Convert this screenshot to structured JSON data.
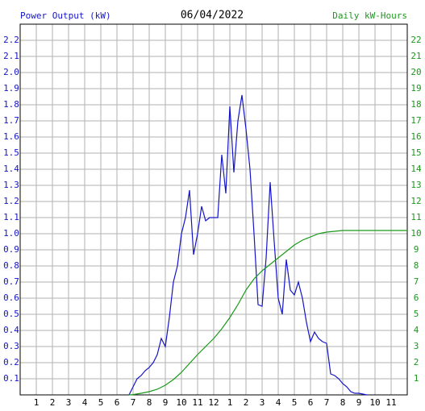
{
  "chart_data": {
    "type": "line",
    "title": "06/04/2022",
    "y_label": "Power Output (kW)",
    "y2_label": "Daily kW-Hours",
    "xlim": [
      0,
      24
    ],
    "xticks": [
      1,
      2,
      3,
      4,
      5,
      6,
      7,
      8,
      9,
      10,
      11,
      12,
      {
        "value": 13,
        "label": "1"
      },
      {
        "value": 14,
        "label": "2"
      },
      {
        "value": 15,
        "label": "3"
      },
      {
        "value": 16,
        "label": "4"
      },
      {
        "value": 17,
        "label": "5"
      },
      {
        "value": 18,
        "label": "6"
      },
      {
        "value": 19,
        "label": "7"
      },
      {
        "value": 20,
        "label": "8"
      },
      {
        "value": 21,
        "label": "9"
      },
      {
        "value": 22,
        "label": "10"
      },
      {
        "value": 23,
        "label": "11"
      }
    ],
    "ylim": [
      0,
      2.3
    ],
    "yticks": [
      0.1,
      0.2,
      0.3,
      0.4,
      0.5,
      0.6,
      0.7,
      0.8,
      0.9,
      {
        "value": 1,
        "label": "1.0"
      },
      1.1,
      1.2,
      1.3,
      1.4,
      1.5,
      1.6,
      1.7,
      1.8,
      1.9,
      {
        "value": 2,
        "label": "2.0"
      },
      2.1,
      2.2
    ],
    "y2lim": [
      0,
      23
    ],
    "y2ticks": [
      1,
      2,
      3,
      4,
      5,
      6,
      7,
      8,
      9,
      10,
      11,
      12,
      13,
      14,
      15,
      16,
      17,
      18,
      19,
      20,
      21,
      22
    ],
    "grid": true,
    "series": [
      {
        "color": "#1414c8",
        "axis": "y",
        "x": [
          6.75,
          7,
          7.25,
          7.5,
          7.75,
          8,
          8.25,
          8.5,
          8.75,
          9,
          9.25,
          9.5,
          9.75,
          10,
          10.25,
          10.5,
          10.75,
          11,
          11.25,
          11.5,
          11.75,
          12,
          12.25,
          12.5,
          12.75,
          13,
          13.25,
          13.5,
          13.75,
          14,
          14.25,
          14.5,
          14.75,
          15,
          15.25,
          15.5,
          15.75,
          16,
          16.25,
          16.5,
          16.75,
          17,
          17.25,
          17.5,
          17.75,
          18,
          18.25,
          18.5,
          18.75,
          19,
          19.25,
          19.5,
          19.75,
          20,
          20.25,
          20.5,
          20.75,
          21,
          21.5
        ],
        "values": [
          0,
          0.05,
          0.1,
          0.12,
          0.15,
          0.17,
          0.2,
          0.25,
          0.35,
          0.3,
          0.48,
          0.7,
          0.8,
          1.0,
          1.1,
          1.27,
          0.87,
          1.0,
          1.17,
          1.08,
          1.1,
          1.1,
          1.1,
          1.49,
          1.25,
          1.79,
          1.38,
          1.7,
          1.86,
          1.65,
          1.4,
          1.0,
          0.56,
          0.55,
          0.85,
          1.32,
          0.95,
          0.6,
          0.5,
          0.84,
          0.65,
          0.62,
          0.7,
          0.6,
          0.45,
          0.33,
          0.39,
          0.35,
          0.33,
          0.32,
          0.13,
          0.12,
          0.1,
          0.07,
          0.05,
          0.02,
          0.01,
          0.01,
          0
        ]
      },
      {
        "color": "#1a9a1a",
        "axis": "y2",
        "x": [
          6.75,
          7,
          7.5,
          8,
          8.5,
          9,
          9.5,
          10,
          10.5,
          11,
          11.5,
          12,
          12.5,
          13,
          13.5,
          14,
          14.5,
          15,
          15.5,
          16,
          16.5,
          17,
          17.5,
          18,
          18.5,
          19,
          19.5,
          20,
          21,
          22,
          23,
          24
        ],
        "values": [
          0,
          0.02,
          0.1,
          0.2,
          0.35,
          0.6,
          0.95,
          1.4,
          1.95,
          2.5,
          3.0,
          3.5,
          4.1,
          4.8,
          5.6,
          6.5,
          7.2,
          7.7,
          8.1,
          8.5,
          8.9,
          9.3,
          9.6,
          9.8,
          10.0,
          10.1,
          10.15,
          10.2,
          10.2,
          10.2,
          10.2,
          10.2
        ]
      }
    ]
  }
}
